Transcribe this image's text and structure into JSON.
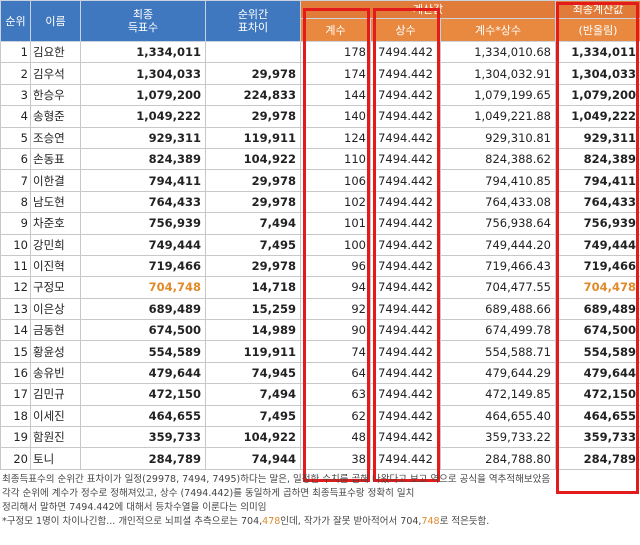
{
  "header": {
    "rank": "순위",
    "name": "이름",
    "votes": "최종\n득표수",
    "diff": "순위간\n표차이",
    "calc_group": "계산값",
    "coef": "계수",
    "const": "상수",
    "product": "계수*상수",
    "final_group": "최종계산값",
    "final": "(반올림)"
  },
  "table": {
    "rows": [
      [
        "1",
        "김요한",
        "1,334,011",
        null,
        "178",
        "7494.442",
        "1,334,010.68",
        "1,334,011"
      ],
      [
        "2",
        "김우석",
        "1,304,033",
        "29,978",
        "174",
        "7494.442",
        "1,304,032.91",
        "1,304,033"
      ],
      [
        "3",
        "한승우",
        "1,079,200",
        "224,833",
        "144",
        "7494.442",
        "1,079,199.65",
        "1,079,200"
      ],
      [
        "4",
        "송형준",
        "1,049,222",
        "29,978",
        "140",
        "7494.442",
        "1,049,221.88",
        "1,049,222"
      ],
      [
        "5",
        "조승연",
        "929,311",
        "119,911",
        "124",
        "7494.442",
        "929,310.81",
        "929,311"
      ],
      [
        "6",
        "손동표",
        "824,389",
        "104,922",
        "110",
        "7494.442",
        "824,388.62",
        "824,389"
      ],
      [
        "7",
        "이한결",
        "794,411",
        "29,978",
        "106",
        "7494.442",
        "794,410.85",
        "794,411"
      ],
      [
        "8",
        "남도현",
        "764,433",
        "29,978",
        "102",
        "7494.442",
        "764,433.08",
        "764,433"
      ],
      [
        "9",
        "차준호",
        "756,939",
        "7,494",
        "101",
        "7494.442",
        "756,938.64",
        "756,939"
      ],
      [
        "10",
        "강민희",
        "749,444",
        "7,495",
        "100",
        "7494.442",
        "749,444.20",
        "749,444"
      ],
      [
        "11",
        "이진혁",
        "719,466",
        "29,978",
        "96",
        "7494.442",
        "719,466.43",
        "719,466"
      ],
      [
        "12",
        "구정모",
        "704,748",
        "14,718",
        "94",
        "7494.442",
        "704,477.55",
        "704,478"
      ],
      [
        "13",
        "이은상",
        "689,489",
        "15,259",
        "92",
        "7494.442",
        "689,488.66",
        "689,489"
      ],
      [
        "14",
        "금동현",
        "674,500",
        "14,989",
        "90",
        "7494.442",
        "674,499.78",
        "674,500"
      ],
      [
        "15",
        "황윤성",
        "554,589",
        "119,911",
        "74",
        "7494.442",
        "554,588.71",
        "554,589"
      ],
      [
        "16",
        "송유빈",
        "479,644",
        "74,945",
        "64",
        "7494.442",
        "479,644.29",
        "479,644"
      ],
      [
        "17",
        "김민규",
        "472,150",
        "7,494",
        "63",
        "7494.442",
        "472,149.85",
        "472,150"
      ],
      [
        "18",
        "이세진",
        "464,655",
        "7,495",
        "62",
        "7494.442",
        "464,655.40",
        "464,655"
      ],
      [
        "19",
        "함원진",
        "359,733",
        "104,922",
        "48",
        "7494.442",
        "359,733.22",
        "359,733"
      ],
      [
        "20",
        "토니",
        "284,789",
        "74,944",
        "38",
        "7494.442",
        "284,788.80",
        "284,789"
      ]
    ]
  },
  "notes": [
    [
      "최종득표수의 순위간 표차이가 일정(29978, 7494, 7495)하다는 말은, 일정한 수치를 곱해 나왔다고 보고 역으로 공식을 역추적해보았음"
    ],
    [
      "각각 순위에 계수가 정수로 정해져있고, 상수 (7494.442)를 동일하게 곱하면 최종득표수랑 정확히 일치"
    ],
    [
      "정리해서 말하면 7494.442에 대해서 등차수열을 이룬다는 의미임"
    ],
    [
      "*구정모 1명이 차이나긴함... 개인적으로 뇌피셜 추측으로는 704,",
      "478",
      "인데, 작가가 잘못 받아적어서 704,",
      "748",
      "로 적은듯함."
    ]
  ]
}
